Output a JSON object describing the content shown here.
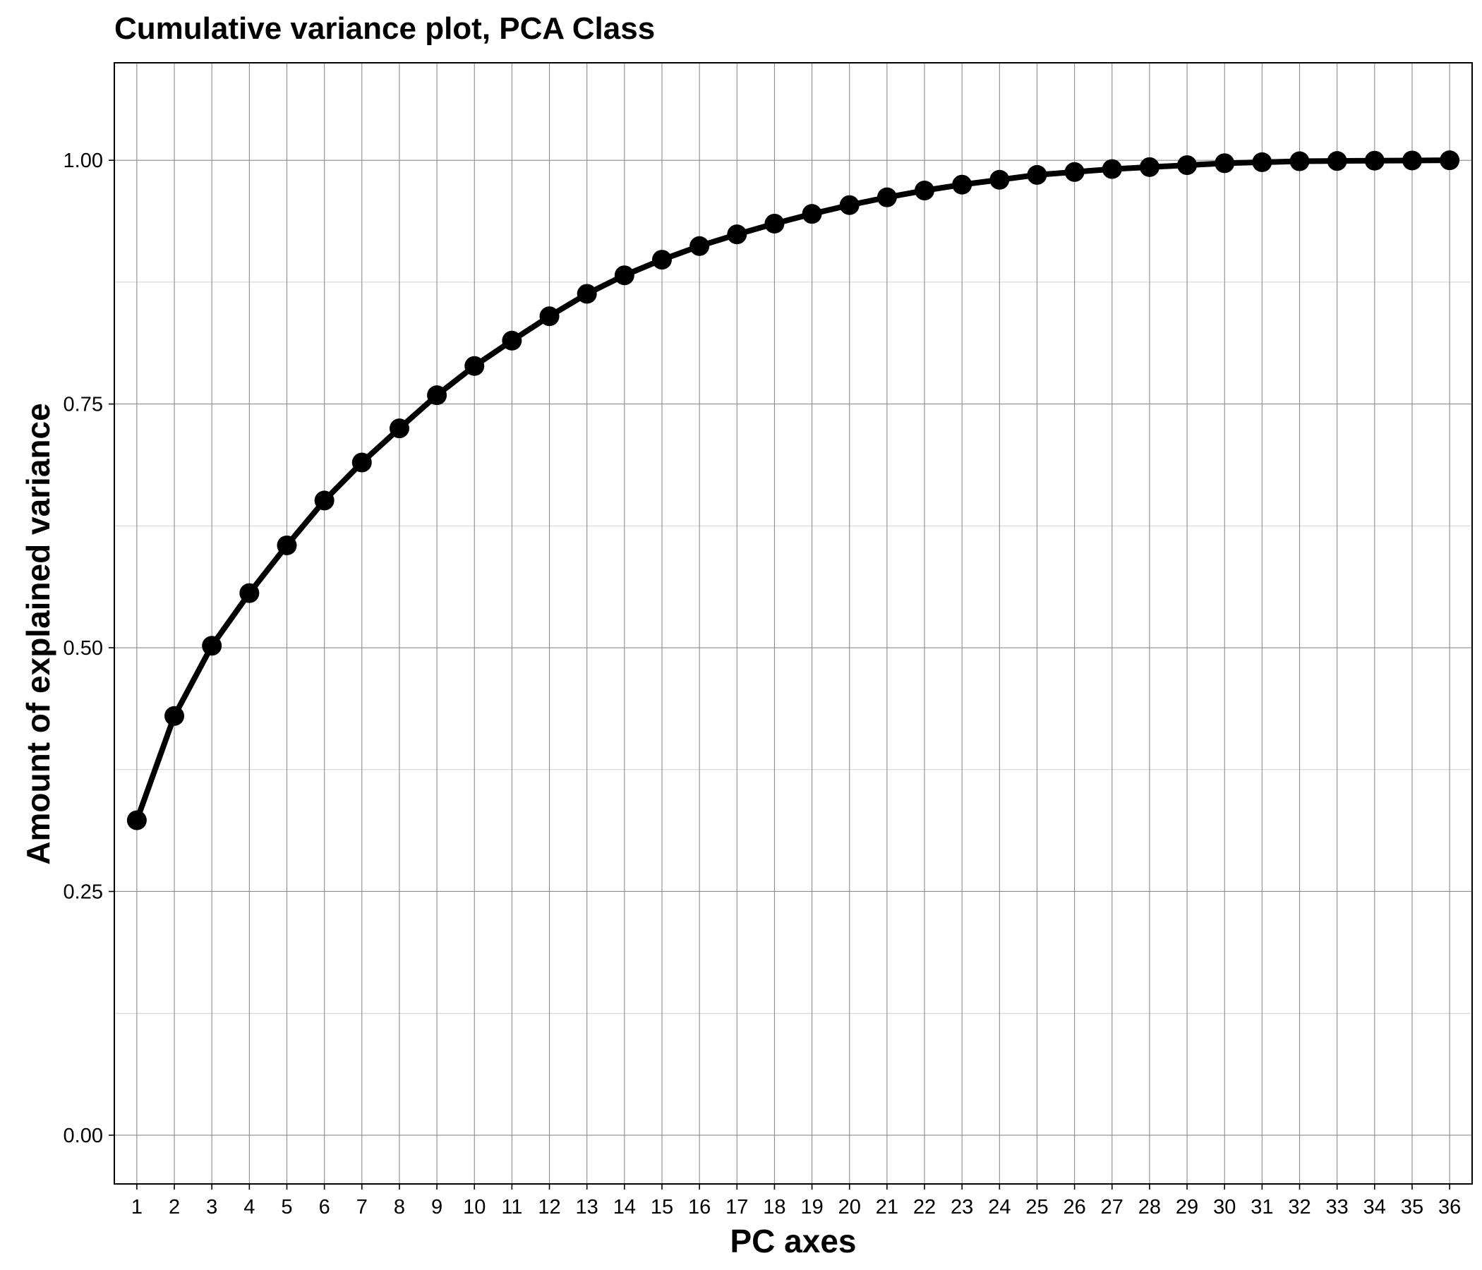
{
  "chart_data": {
    "type": "line",
    "title": "Cumulative variance plot, PCA Class",
    "xlabel": "PC axes",
    "ylabel": "Amount of explained variance",
    "x_ticks": [
      "1",
      "2",
      "3",
      "4",
      "5",
      "6",
      "7",
      "8",
      "9",
      "10",
      "11",
      "12",
      "13",
      "14",
      "15",
      "16",
      "17",
      "18",
      "19",
      "20",
      "21",
      "22",
      "23",
      "24",
      "25",
      "26",
      "27",
      "28",
      "29",
      "30",
      "31",
      "32",
      "33",
      "34",
      "35",
      "36"
    ],
    "y_ticks": [
      "0.00",
      "0.25",
      "0.50",
      "0.75",
      "1.00"
    ],
    "ylim": [
      -0.05,
      1.1
    ],
    "xlim": [
      0.4,
      36.6
    ],
    "grid": true,
    "legend": "none",
    "series": [
      {
        "color": "#000000",
        "x": [
          1,
          2,
          3,
          4,
          5,
          6,
          7,
          8,
          9,
          10,
          11,
          12,
          13,
          14,
          15,
          16,
          17,
          18,
          19,
          20,
          21,
          22,
          23,
          24,
          25,
          26,
          27,
          28,
          29,
          30,
          31,
          32,
          33,
          34,
          35,
          36
        ],
        "values": [
          0.323,
          0.43,
          0.502,
          0.556,
          0.605,
          0.651,
          0.69,
          0.725,
          0.759,
          0.789,
          0.815,
          0.84,
          0.863,
          0.882,
          0.898,
          0.912,
          0.924,
          0.935,
          0.945,
          0.954,
          0.962,
          0.969,
          0.975,
          0.98,
          0.985,
          0.988,
          0.991,
          0.993,
          0.995,
          0.997,
          0.998,
          0.999,
          0.9993,
          0.9996,
          0.9998,
          1.0
        ]
      }
    ]
  }
}
